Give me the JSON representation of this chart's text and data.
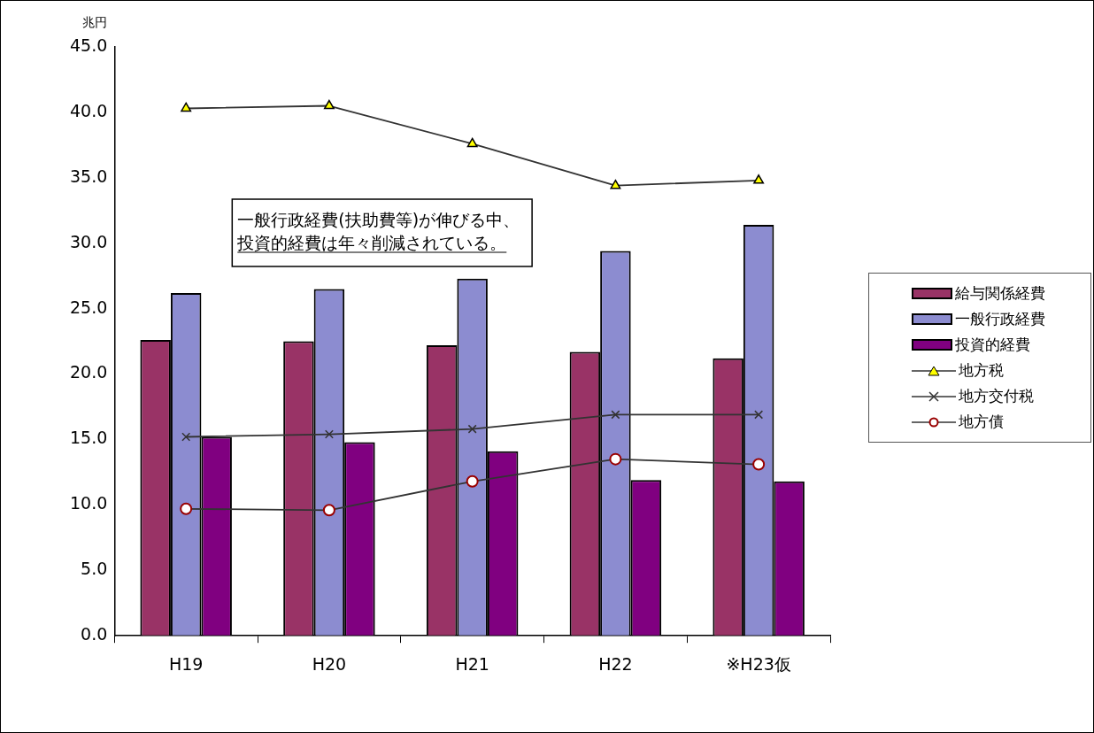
{
  "chart_data": {
    "type": "bar",
    "ylabel": "兆円",
    "categories": [
      "H19",
      "H20",
      "H21",
      "H22",
      "※H23仮"
    ],
    "series": [
      {
        "name": "給与関係経費",
        "color": "#993366",
        "values": [
          22.6,
          22.5,
          22.2,
          21.7,
          21.2
        ]
      },
      {
        "name": "一般行政経費",
        "color": "#8c8cd0",
        "values": [
          26.2,
          26.5,
          27.3,
          29.4,
          31.4
        ]
      },
      {
        "name": "投資的経費",
        "color": "#800080",
        "values": [
          15.2,
          14.8,
          14.1,
          11.9,
          11.8
        ]
      },
      {
        "name": "地方税",
        "type": "line",
        "color": "#333333",
        "marker": "triangle",
        "values": [
          40.3,
          40.5,
          37.6,
          34.4,
          34.8
        ]
      },
      {
        "name": "地方交付税",
        "type": "line",
        "color": "#333333",
        "marker": "cross",
        "values": [
          15.2,
          15.4,
          15.8,
          16.9,
          16.9
        ]
      },
      {
        "name": "地方債",
        "type": "line",
        "color": "#333333",
        "marker": "circle",
        "values": [
          9.7,
          9.6,
          11.8,
          13.5,
          13.1
        ]
      }
    ],
    "ylim": [
      0,
      45
    ],
    "yticks": [
      {
        "value": 0,
        "label": "0.0"
      },
      {
        "value": 5,
        "label": "5.0"
      },
      {
        "value": 10,
        "label": "10.0"
      },
      {
        "value": 15,
        "label": "15.0"
      },
      {
        "value": 20,
        "label": "20.0"
      },
      {
        "value": 25,
        "label": "25.0"
      },
      {
        "value": 30,
        "label": "30.0"
      },
      {
        "value": 35,
        "label": "35.0"
      },
      {
        "value": 40,
        "label": "40.0"
      },
      {
        "value": 45,
        "label": "45.0"
      }
    ],
    "grid": false,
    "legend": "right",
    "line_style": "solid",
    "annotations": [
      "一般行政経費(扶助費等)が伸びる中、",
      "投資的経費は年々削減されている。"
    ]
  }
}
